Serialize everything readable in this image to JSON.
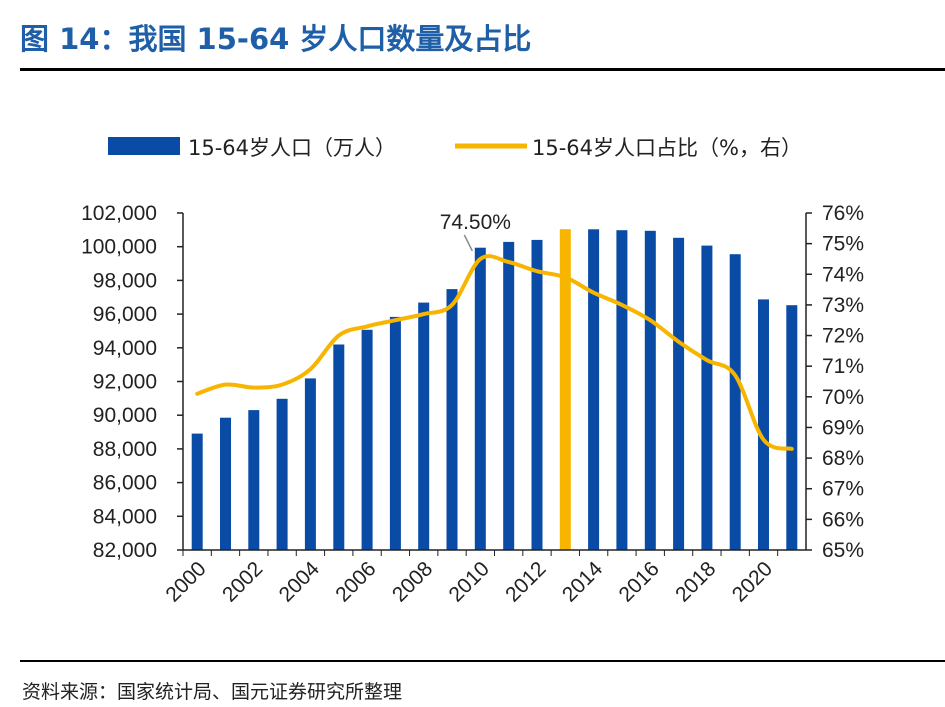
{
  "header": {
    "title": "图 14：我国 15-64 岁人口数量及占比"
  },
  "footer": {
    "source": "资料来源：国家统计局、国元证券研究所整理"
  },
  "colors": {
    "bar": "#0a4ba6",
    "bar_highlight": "#f7b500",
    "line": "#f7b500",
    "title": "#1f5fa8"
  },
  "chart_data": {
    "type": "bar",
    "categories": [
      "2000",
      "2001",
      "2002",
      "2003",
      "2004",
      "2005",
      "2006",
      "2007",
      "2008",
      "2009",
      "2010",
      "2011",
      "2012",
      "2013",
      "2014",
      "2015",
      "2016",
      "2017",
      "2018",
      "2019",
      "2020",
      "2021"
    ],
    "x_tick_labels": [
      "2000",
      "2002",
      "2004",
      "2006",
      "2008",
      "2010",
      "2012",
      "2014",
      "2016",
      "2018",
      "2020"
    ],
    "series": [
      {
        "name": "15-64岁人口（万人）",
        "type": "bar",
        "axis": "left",
        "values": [
          88910,
          89849,
          90302,
          90976,
          92184,
          94197,
          95068,
          95833,
          96680,
          97484,
          99938,
          100283,
          100403,
          101041,
          101032,
          100978,
          100943,
          100528,
          100065,
          99552,
          96871,
          96526
        ]
      },
      {
        "name": "15-64岁人口占比（%，右）",
        "type": "line",
        "axis": "right",
        "values": [
          70.1,
          70.4,
          70.3,
          70.4,
          70.9,
          72.0,
          72.3,
          72.5,
          72.7,
          73.0,
          74.5,
          74.4,
          74.1,
          73.9,
          73.4,
          73.0,
          72.5,
          71.8,
          71.2,
          70.7,
          68.6,
          68.3
        ]
      }
    ],
    "highlight_category": "2013",
    "annotation": {
      "text": "74.50%",
      "category": "2010"
    },
    "y_left": {
      "min": 82000,
      "max": 102000,
      "step": 2000,
      "tick_labels": [
        "102,000",
        "100,000",
        "98,000",
        "96,000",
        "94,000",
        "92,000",
        "90,000",
        "88,000",
        "86,000",
        "84,000",
        "82,000"
      ]
    },
    "y_right": {
      "min": 65,
      "max": 76,
      "step": 1,
      "tick_labels": [
        "76%",
        "75%",
        "74%",
        "73%",
        "72%",
        "71%",
        "70%",
        "69%",
        "68%",
        "67%",
        "66%",
        "65%"
      ]
    },
    "legend_position": "top",
    "grid": false
  }
}
